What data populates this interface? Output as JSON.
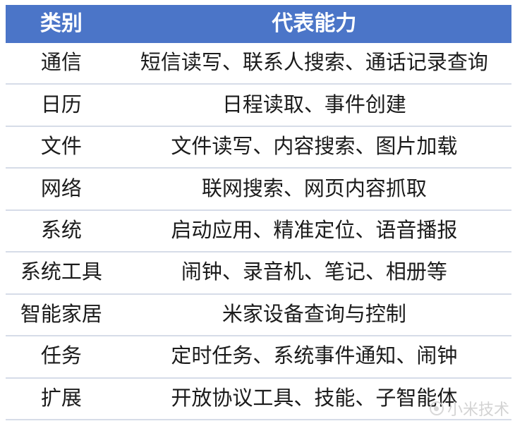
{
  "table": {
    "header": {
      "col1": "类别",
      "col2": "代表能力"
    },
    "rows": [
      {
        "category": "通信",
        "capabilities": "短信读写、联系人搜索、通话记录查询"
      },
      {
        "category": "日历",
        "capabilities": "日程读取、事件创建"
      },
      {
        "category": "文件",
        "capabilities": "文件读写、内容搜索、图片加载"
      },
      {
        "category": "网络",
        "capabilities": "联网搜索、网页内容抓取"
      },
      {
        "category": "系统",
        "capabilities": "启动应用、精准定位、语音播报"
      },
      {
        "category": "系统工具",
        "capabilities": "闹钟、录音机、笔记、相册等"
      },
      {
        "category": "智能家居",
        "capabilities": "米家设备查询与控制"
      },
      {
        "category": "任务",
        "capabilities": "定时任务、系统事件通知、闹钟"
      },
      {
        "category": "扩展",
        "capabilities": "开放协议工具、技能、子智能体"
      }
    ]
  },
  "watermark": {
    "text": "小米技术"
  },
  "colors": {
    "header_bg": "#4B75C8",
    "header_text": "#FFFFFF",
    "divider": "#D6DCE8",
    "body_text": "#1B1B1B",
    "watermark_text": "#CFCFCF"
  },
  "chart_data": {
    "type": "table",
    "columns": [
      "类别",
      "代表能力"
    ],
    "rows": [
      [
        "通信",
        "短信读写、联系人搜索、通话记录查询"
      ],
      [
        "日历",
        "日程读取、事件创建"
      ],
      [
        "文件",
        "文件读写、内容搜索、图片加载"
      ],
      [
        "网络",
        "联网搜索、网页内容抓取"
      ],
      [
        "系统",
        "启动应用、精准定位、语音播报"
      ],
      [
        "系统工具",
        "闹钟、录音机、笔记、相册等"
      ],
      [
        "智能家居",
        "米家设备查询与控制"
      ],
      [
        "任务",
        "定时任务、系统事件通知、闹钟"
      ],
      [
        "扩展",
        "开放协议工具、技能、子智能体"
      ]
    ],
    "title": "",
    "legend": "none",
    "grid": "horizontal-dividers-only"
  }
}
